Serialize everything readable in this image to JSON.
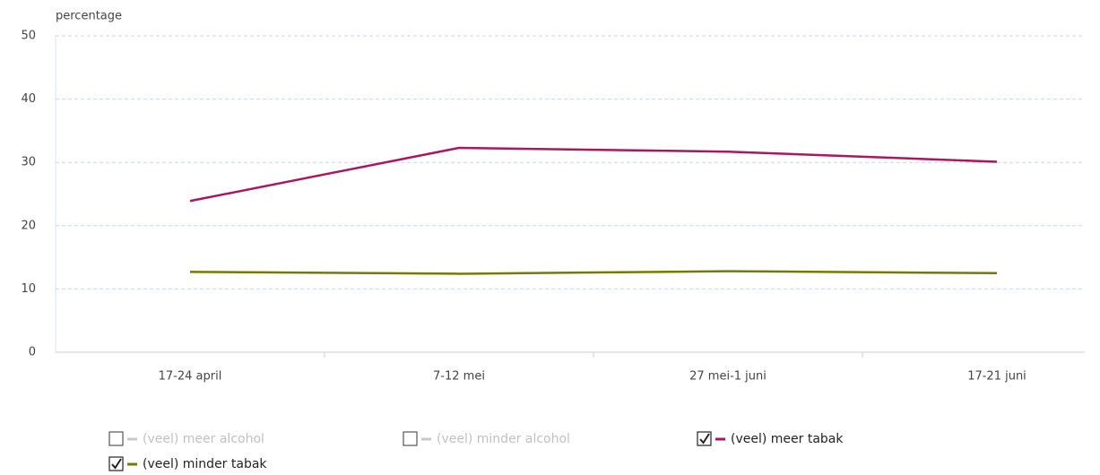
{
  "chart_data": {
    "type": "line",
    "y_label": "percentage",
    "categories": [
      "17-24 april",
      "7-12 mei",
      "27 mei-1 juni",
      "17-21 juni"
    ],
    "series": [
      {
        "name": "(veel) meer alcohol",
        "color": "#c8c8c8",
        "checked": false,
        "values": [
          null,
          null,
          null,
          null
        ]
      },
      {
        "name": "(veel) minder alcohol",
        "color": "#c8c8c8",
        "checked": false,
        "values": [
          null,
          null,
          null,
          null
        ]
      },
      {
        "name": "(veel) meer tabak",
        "color": "#a8185e",
        "checked": true,
        "values": [
          23.9,
          32.3,
          31.7,
          30.1
        ]
      },
      {
        "name": "(veel) minder tabak",
        "color": "#767a00",
        "checked": true,
        "values": [
          12.7,
          12.4,
          12.8,
          12.5
        ]
      }
    ],
    "ylim": [
      0,
      50
    ],
    "yticks": [
      0,
      10,
      20,
      30,
      40,
      50
    ],
    "grid": true
  }
}
